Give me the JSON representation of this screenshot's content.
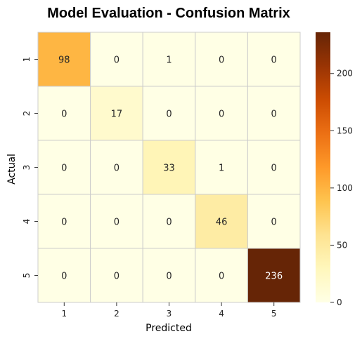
{
  "chart_data": {
    "type": "heatmap",
    "title": "Model Evaluation - Confusion Matrix",
    "xlabel": "Predicted",
    "ylabel": "Actual",
    "x_categories": [
      "1",
      "2",
      "3",
      "4",
      "5"
    ],
    "y_categories": [
      "1",
      "2",
      "3",
      "4",
      "5"
    ],
    "values": [
      [
        98,
        0,
        1,
        0,
        0
      ],
      [
        0,
        17,
        0,
        0,
        0
      ],
      [
        0,
        0,
        33,
        1,
        0
      ],
      [
        0,
        0,
        0,
        46,
        0
      ],
      [
        0,
        0,
        0,
        0,
        236
      ]
    ],
    "colorbar": {
      "range": [
        0,
        236
      ],
      "ticks": [
        0,
        50,
        100,
        150,
        200
      ],
      "colormap": "YlOrBr",
      "stops": [
        "#ffffe5",
        "#fff7bc",
        "#fee391",
        "#fec44f",
        "#fe9929",
        "#ec7014",
        "#cc4c02",
        "#993404",
        "#662506"
      ]
    },
    "grid_line_color": "#cccccc"
  }
}
